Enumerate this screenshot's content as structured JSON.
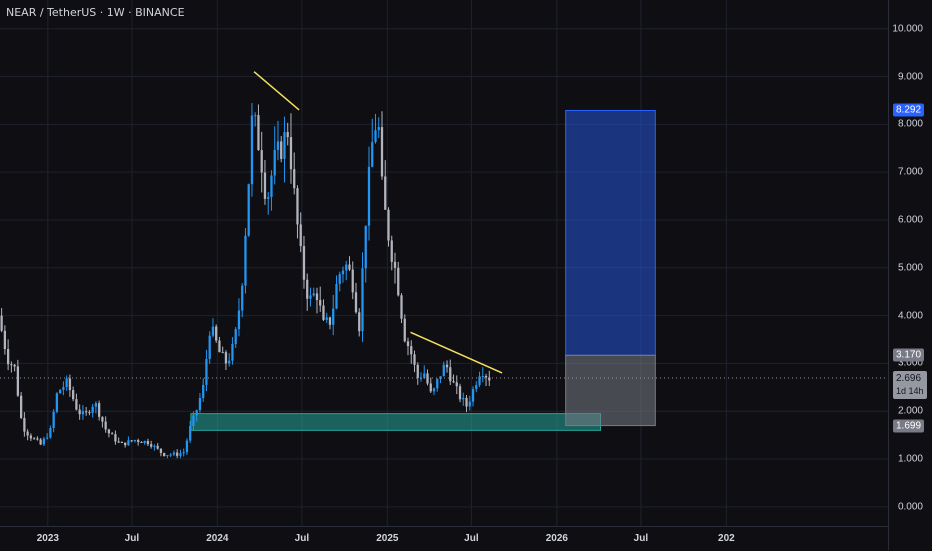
{
  "chart_data": {
    "type": "candlestick",
    "title": "NEAR / TetherUS · 1W · BINANCE",
    "y_axis": {
      "range": [
        -0.4,
        10.6
      ],
      "ticks": [
        "10.000",
        "9.000",
        "8.000",
        "7.000",
        "6.000",
        "5.000",
        "4.000",
        "3.000",
        "2.000",
        "1.000",
        "0.000"
      ]
    },
    "x_axis": {
      "range": [
        "2022-09-20",
        "2027-12-15"
      ],
      "ticks": [
        {
          "date": "2023-01-01",
          "label": "2023"
        },
        {
          "date": "2023-07-01",
          "label": "Jul"
        },
        {
          "date": "2024-01-01",
          "label": "2024"
        },
        {
          "date": "2024-07-01",
          "label": "Jul"
        },
        {
          "date": "2025-01-01",
          "label": "2025"
        },
        {
          "date": "2025-07-01",
          "label": "Jul"
        },
        {
          "date": "2026-01-01",
          "label": "2026"
        },
        {
          "date": "2026-07-01",
          "label": "Jul"
        },
        {
          "date": "2027-01-01",
          "label": "202"
        }
      ]
    },
    "price_path": [
      [
        "2022-09-20",
        4.0
      ],
      [
        "2022-10-10",
        3.1
      ],
      [
        "2022-10-25",
        2.9
      ],
      [
        "2022-11-10",
        1.7
      ],
      [
        "2022-11-25",
        1.5
      ],
      [
        "2022-12-20",
        1.3
      ],
      [
        "2023-01-10",
        1.6
      ],
      [
        "2023-01-25",
        2.4
      ],
      [
        "2023-02-15",
        2.6
      ],
      [
        "2023-03-10",
        2.0
      ],
      [
        "2023-03-25",
        1.9
      ],
      [
        "2023-04-15",
        2.2
      ],
      [
        "2023-05-10",
        1.6
      ],
      [
        "2023-06-10",
        1.3
      ],
      [
        "2023-07-10",
        1.4
      ],
      [
        "2023-08-10",
        1.35
      ],
      [
        "2023-09-10",
        1.1
      ],
      [
        "2023-10-10",
        1.1
      ],
      [
        "2023-10-25",
        1.15
      ],
      [
        "2023-11-05",
        1.6
      ],
      [
        "2023-11-20",
        2.0
      ],
      [
        "2023-12-05",
        2.5
      ],
      [
        "2023-12-20",
        3.8
      ],
      [
        "2024-01-10",
        3.2
      ],
      [
        "2024-01-25",
        3.0
      ],
      [
        "2024-02-10",
        3.4
      ],
      [
        "2024-02-25",
        4.5
      ],
      [
        "2024-03-10",
        6.5
      ],
      [
        "2024-03-20",
        8.2
      ],
      [
        "2024-04-05",
        7.5
      ],
      [
        "2024-04-20",
        6.4
      ],
      [
        "2024-05-05",
        7.2
      ],
      [
        "2024-05-20",
        7.5
      ],
      [
        "2024-06-05",
        7.9
      ],
      [
        "2024-06-20",
        6.3
      ],
      [
        "2024-07-05",
        5.0
      ],
      [
        "2024-07-20",
        4.3
      ],
      [
        "2024-08-05",
        4.5
      ],
      [
        "2024-08-20",
        3.8
      ],
      [
        "2024-09-05",
        3.9
      ],
      [
        "2024-09-20",
        4.8
      ],
      [
        "2024-10-05",
        5.1
      ],
      [
        "2024-10-20",
        4.8
      ],
      [
        "2024-11-05",
        3.8
      ],
      [
        "2024-11-20",
        6.2
      ],
      [
        "2024-12-05",
        7.8
      ],
      [
        "2024-12-15",
        8.2
      ],
      [
        "2024-12-25",
        6.5
      ],
      [
        "2025-01-10",
        5.5
      ],
      [
        "2025-01-25",
        4.8
      ],
      [
        "2025-02-10",
        3.6
      ],
      [
        "2025-02-25",
        3.2
      ],
      [
        "2025-03-10",
        2.7
      ],
      [
        "2025-03-25",
        2.8
      ],
      [
        "2025-04-10",
        2.3
      ],
      [
        "2025-04-25",
        2.7
      ],
      [
        "2025-05-10",
        3.0
      ],
      [
        "2025-05-25",
        2.6
      ],
      [
        "2025-06-10",
        2.3
      ],
      [
        "2025-06-25",
        2.1
      ],
      [
        "2025-07-10",
        2.5
      ],
      [
        "2025-07-25",
        2.9
      ],
      [
        "2025-08-10",
        2.7
      ]
    ],
    "trendlines": [
      {
        "from": [
          "2024-03-20",
          9.1
        ],
        "to": [
          "2024-06-25",
          8.3
        ]
      },
      {
        "from": [
          "2025-02-20",
          3.65
        ],
        "to": [
          "2025-09-05",
          2.8
        ]
      }
    ],
    "zones": [
      {
        "name": "support",
        "from": [
          "2023-11-05",
          1.95
        ],
        "to": [
          "2026-04-05",
          1.6
        ],
        "color": "#26a69a"
      },
      {
        "name": "target",
        "from": [
          "2026-01-20",
          8.29
        ],
        "to": [
          "2026-08-01",
          3.17
        ],
        "color": "#2962ff"
      },
      {
        "name": "stop",
        "from": [
          "2026-01-20",
          3.17
        ],
        "to": [
          "2026-08-01",
          1.7
        ],
        "color": "#787b86"
      }
    ],
    "last_price": 2.696,
    "price_labels": [
      {
        "text": "8.292",
        "value": 8.292,
        "bg": "#2962ff",
        "fg": "#ffffff"
      },
      {
        "text": "3.170",
        "value": 3.17,
        "bg": "#787b86",
        "fg": "#ffffff"
      },
      {
        "text": "2.696",
        "value": 2.696,
        "bg": "#9598a1",
        "fg": "#131722",
        "sub": "1d 14h"
      },
      {
        "text": "1.699",
        "value": 1.699,
        "bg": "#787b86",
        "fg": "#ffffff"
      }
    ],
    "colors": {
      "up": "#2196f3",
      "down": "#b2b5be",
      "trend": "#f6e05e",
      "grid": "#1e222d"
    }
  }
}
